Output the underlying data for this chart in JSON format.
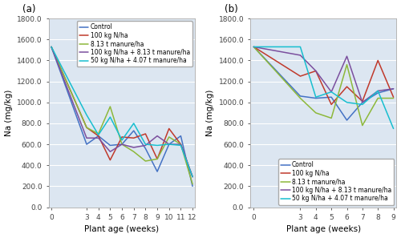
{
  "panel_a": {
    "title": "(a)",
    "xlabel": "Plant age (weeks)",
    "ylabel": "Na (mg/kg)",
    "x_ticks": [
      0,
      3,
      4,
      5,
      6,
      7,
      8,
      9,
      10,
      11,
      12
    ],
    "ylim": [
      0,
      1800
    ],
    "yticks": [
      0.0,
      200.0,
      400.0,
      600.0,
      800.0,
      1000.0,
      1200.0,
      1400.0,
      1600.0,
      1800.0
    ],
    "series": [
      {
        "label": "Control",
        "color": "#4472c4",
        "x": [
          0,
          3,
          4,
          5,
          6,
          7,
          8,
          9,
          10,
          11,
          12
        ],
        "y": [
          1530,
          600,
          680,
          590,
          600,
          730,
          560,
          340,
          600,
          680,
          200
        ]
      },
      {
        "label": "100 kg N/ha",
        "color": "#c0392b",
        "x": [
          0,
          3,
          4,
          5,
          6,
          7,
          8,
          9,
          10,
          11,
          12
        ],
        "y": [
          1530,
          760,
          680,
          450,
          670,
          660,
          700,
          460,
          750,
          600,
          290
        ]
      },
      {
        "label": "8.13 t manure/ha",
        "color": "#8db83a",
        "x": [
          0,
          3,
          4,
          5,
          6,
          7,
          8,
          9,
          10,
          11,
          12
        ],
        "y": [
          1530,
          760,
          700,
          960,
          600,
          530,
          440,
          460,
          670,
          600,
          220
        ]
      },
      {
        "label": "100 kg N/ha + 8.13 t manure/ha",
        "color": "#7b4f9e",
        "x": [
          0,
          3,
          4,
          5,
          6,
          7,
          8,
          9,
          10,
          11,
          12
        ],
        "y": [
          1530,
          660,
          660,
          530,
          600,
          570,
          590,
          680,
          600,
          600,
          290
        ]
      },
      {
        "label": "50 kg N/ha + 4.07 t manure/ha",
        "color": "#17becf",
        "x": [
          0,
          3,
          4,
          5,
          6,
          7,
          8,
          9,
          10,
          11,
          12
        ],
        "y": [
          1530,
          880,
          690,
          860,
          640,
          800,
          600,
          590,
          600,
          590,
          290
        ]
      }
    ],
    "legend_loc": "upper right",
    "legend_bbox": null
  },
  "panel_b": {
    "title": "(b)",
    "xlabel": "Plant age (weeks)",
    "ylabel": "Na (mg/kg)",
    "x_ticks": [
      0,
      3,
      4,
      5,
      6,
      7,
      8,
      9
    ],
    "ylim": [
      0,
      1800
    ],
    "yticks": [
      0.0,
      200.0,
      400.0,
      600.0,
      800.0,
      1000.0,
      1200.0,
      1400.0,
      1600.0,
      1800.0
    ],
    "series": [
      {
        "label": "Control",
        "color": "#4472c4",
        "x": [
          0,
          3,
          4,
          5,
          6,
          7,
          8,
          9
        ],
        "y": [
          1530,
          1060,
          1040,
          1050,
          830,
          1000,
          1090,
          1130
        ]
      },
      {
        "label": "100 kg N/ha",
        "color": "#c0392b",
        "x": [
          0,
          3,
          4,
          5,
          6,
          7,
          8,
          9
        ],
        "y": [
          1530,
          1250,
          1300,
          980,
          1150,
          1010,
          1400,
          1050
        ]
      },
      {
        "label": "8.13 t manure/ha",
        "color": "#8db83a",
        "x": [
          0,
          3,
          4,
          5,
          6,
          7,
          8,
          9
        ],
        "y": [
          1530,
          1040,
          900,
          850,
          1360,
          780,
          1040,
          1040
        ]
      },
      {
        "label": "100 kg N/ha + 8.13 t manure/ha",
        "color": "#7b4f9e",
        "x": [
          0,
          3,
          4,
          5,
          6,
          7,
          8,
          9
        ],
        "y": [
          1530,
          1450,
          1300,
          1100,
          1440,
          1000,
          1110,
          1130
        ]
      },
      {
        "label": "50 kg N/ha + 4.07 t manure/ha",
        "color": "#17becf",
        "x": [
          0,
          3,
          4,
          5,
          6,
          7,
          8,
          9
        ],
        "y": [
          1530,
          1530,
          1050,
          1100,
          1000,
          980,
          1110,
          750
        ]
      }
    ],
    "legend_loc": "lower right",
    "legend_bbox": null
  },
  "fig_facecolor": "#ffffff",
  "plot_facecolor": "#dce6f1",
  "grid_color": "#ffffff",
  "spine_color": "#aaaaaa",
  "legend_fontsize": 5.5,
  "axis_label_fontsize": 7.5,
  "tick_fontsize": 6.5,
  "title_fontsize": 8.5,
  "linewidth": 1.1
}
